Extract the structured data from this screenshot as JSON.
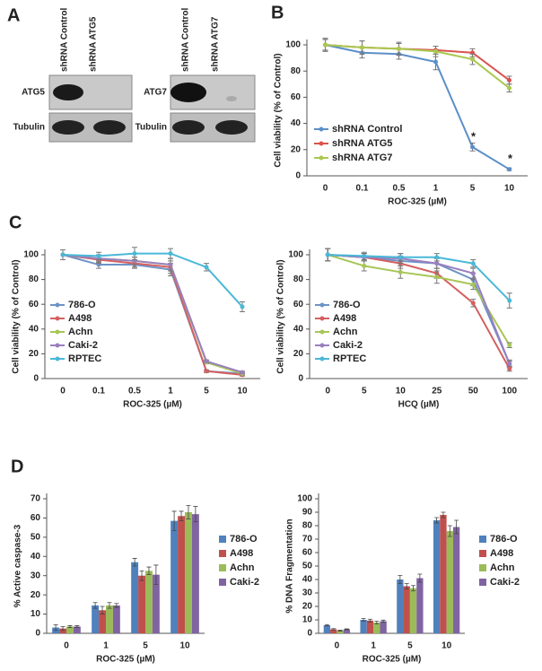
{
  "blot": {
    "panel": "A",
    "groups": [
      {
        "lanes": [
          "shRNA Control",
          "shRNA ATG5"
        ],
        "rows": [
          "ATG5",
          "Tubulin"
        ]
      },
      {
        "lanes": [
          "shRNA Control",
          "shRNA ATG7"
        ],
        "rows": [
          "ATG7",
          "Tubulin"
        ]
      }
    ]
  },
  "chart_data": [
    {
      "type": "line",
      "panel": "B",
      "ylabel": "Cell viability (% of Control)",
      "xlabel": "ROC-325 (µM)",
      "categories": [
        "0",
        "0.1",
        "0.5",
        "1",
        "5",
        "10"
      ],
      "ylim": [
        0,
        100
      ],
      "yticks": [
        0,
        20,
        40,
        60,
        80,
        100
      ],
      "legend": "lower left",
      "series": [
        {
          "name": "shRNA Control",
          "color": "#5b8fc9",
          "values": [
            100,
            94,
            93,
            87,
            22,
            5
          ],
          "errors": [
            5,
            4,
            4,
            6,
            3,
            1
          ]
        },
        {
          "name": "shRNA ATG5",
          "color": "#d9534f",
          "values": [
            100,
            98,
            97,
            96,
            94,
            73
          ],
          "errors": [
            5,
            5,
            4,
            3,
            3,
            3
          ]
        },
        {
          "name": "shRNA ATG7",
          "color": "#a9c94f",
          "values": [
            100,
            98,
            97,
            95,
            89,
            67
          ],
          "errors": [
            4,
            5,
            5,
            4,
            4,
            3
          ]
        }
      ],
      "annotations": [
        {
          "text": "*",
          "x": "5"
        },
        {
          "text": "*",
          "x": "10"
        }
      ]
    },
    {
      "type": "line",
      "panel": "C",
      "ylabel": "Cell viability (% of Control)",
      "xlabel": "ROC-325 (µM)",
      "categories": [
        "0",
        "0.1",
        "0.5",
        "1",
        "5",
        "10"
      ],
      "ylim": [
        0,
        100
      ],
      "yticks": [
        0,
        20,
        40,
        60,
        80,
        100
      ],
      "legend": "left",
      "series": [
        {
          "name": "786-O",
          "color": "#6d93c6",
          "values": [
            100,
            92,
            92,
            88,
            6,
            4
          ],
          "errors": [
            4,
            3,
            3,
            5,
            1,
            1
          ]
        },
        {
          "name": "A498",
          "color": "#d46060",
          "values": [
            100,
            96,
            93,
            90,
            6,
            3
          ],
          "errors": [
            4,
            3,
            3,
            5,
            1,
            1
          ]
        },
        {
          "name": "Achn",
          "color": "#a7c657",
          "values": [
            100,
            97,
            95,
            92,
            13,
            4
          ],
          "errors": [
            4,
            3,
            3,
            5,
            1,
            1
          ]
        },
        {
          "name": "Caki-2",
          "color": "#9a7fbf",
          "values": [
            100,
            97,
            95,
            92,
            14,
            5
          ],
          "errors": [
            4,
            3,
            3,
            5,
            1,
            1
          ]
        },
        {
          "name": "RPTEC",
          "color": "#4ab8d8",
          "values": [
            100,
            99,
            101,
            101,
            90,
            58
          ],
          "errors": [
            4,
            3,
            5,
            4,
            3,
            4
          ]
        }
      ]
    },
    {
      "type": "line",
      "ylabel": "Cell viability (% of Control)",
      "xlabel": "HCQ (µM)",
      "categories": [
        "0",
        "5",
        "10",
        "25",
        "50",
        "100"
      ],
      "ylim": [
        0,
        100
      ],
      "yticks": [
        0,
        20,
        40,
        60,
        80,
        100
      ],
      "legend": "left",
      "series": [
        {
          "name": "786-O",
          "color": "#6d93c6",
          "values": [
            100,
            98,
            95,
            93,
            80,
            12
          ],
          "errors": [
            5,
            3,
            4,
            4,
            5,
            3
          ]
        },
        {
          "name": "A498",
          "color": "#d46060",
          "values": [
            100,
            98,
            93,
            85,
            61,
            8
          ],
          "errors": [
            5,
            3,
            4,
            4,
            3,
            2
          ]
        },
        {
          "name": "Achn",
          "color": "#a7c657",
          "values": [
            100,
            91,
            86,
            82,
            76,
            27
          ],
          "errors": [
            5,
            4,
            5,
            5,
            4,
            2
          ]
        },
        {
          "name": "Caki-2",
          "color": "#9a7fbf",
          "values": [
            100,
            98,
            97,
            93,
            85,
            12
          ],
          "errors": [
            5,
            3,
            4,
            4,
            4,
            2
          ]
        },
        {
          "name": "RPTEC",
          "color": "#4ab8d8",
          "values": [
            100,
            99,
            98,
            98,
            93,
            63
          ],
          "errors": [
            5,
            3,
            3,
            3,
            3,
            6
          ]
        }
      ]
    },
    {
      "type": "bar",
      "panel": "D",
      "ylabel": "% Active caspase-3",
      "xlabel": "ROC-325 (µM)",
      "categories": [
        "0",
        "1",
        "5",
        "10"
      ],
      "ylim": [
        0,
        70
      ],
      "yticks": [
        0,
        10,
        20,
        30,
        40,
        50,
        60,
        70
      ],
      "legend": "right",
      "series": [
        {
          "name": "786-O",
          "color": "#4f81bd",
          "values": [
            3,
            14.5,
            37,
            58.5
          ],
          "errors": [
            1.5,
            1.5,
            2,
            5
          ]
        },
        {
          "name": "A498",
          "color": "#c0504d",
          "values": [
            2.5,
            12,
            30,
            61
          ],
          "errors": [
            1,
            2,
            2.5,
            2.5
          ]
        },
        {
          "name": "Achn",
          "color": "#9bbb59",
          "values": [
            3.5,
            14.5,
            32.5,
            63
          ],
          "errors": [
            0.5,
            1.5,
            2,
            3.5
          ]
        },
        {
          "name": "Caki-2",
          "color": "#8064a2",
          "values": [
            3.5,
            14.5,
            30.5,
            62
          ],
          "errors": [
            0.5,
            1,
            5,
            4
          ]
        }
      ]
    },
    {
      "type": "bar",
      "ylabel": "% DNA Fragmentation",
      "xlabel": "ROC-325 (µM)",
      "categories": [
        "0",
        "1",
        "5",
        "10"
      ],
      "ylim": [
        0,
        100
      ],
      "yticks": [
        0,
        10,
        20,
        30,
        40,
        50,
        60,
        70,
        80,
        90,
        100
      ],
      "legend": "right",
      "series": [
        {
          "name": "786-O",
          "color": "#4f81bd",
          "values": [
            6,
            10,
            40,
            84
          ],
          "errors": [
            0.5,
            1,
            3,
            2
          ]
        },
        {
          "name": "A498",
          "color": "#c0504d",
          "values": [
            3,
            9.5,
            35,
            88
          ],
          "errors": [
            0.5,
            1,
            2,
            2
          ]
        },
        {
          "name": "Achn",
          "color": "#9bbb59",
          "values": [
            2,
            8,
            33.5,
            76
          ],
          "errors": [
            0.3,
            1,
            2,
            4
          ]
        },
        {
          "name": "Caki-2",
          "color": "#8064a2",
          "values": [
            3,
            9,
            41,
            79
          ],
          "errors": [
            0.3,
            0.8,
            3,
            5
          ]
        }
      ]
    }
  ]
}
